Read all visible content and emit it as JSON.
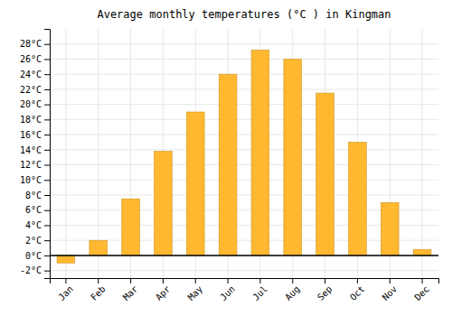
{
  "chart_data": {
    "type": "bar",
    "title": "Average monthly temperatures (°C ) in Kingman",
    "categories": [
      "Jan",
      "Feb",
      "Mar",
      "Apr",
      "May",
      "Jun",
      "Jul",
      "Aug",
      "Sep",
      "Oct",
      "Nov",
      "Dec"
    ],
    "values": [
      -1.0,
      2.0,
      7.5,
      13.8,
      19.0,
      24.0,
      27.2,
      26.0,
      21.5,
      15.0,
      7.0,
      0.8
    ],
    "color": "#FFB830",
    "ylim": [
      -3,
      30
    ],
    "yticks": [
      {
        "value": -2,
        "label": "-2°C"
      },
      {
        "value": 0,
        "label": "0°C"
      },
      {
        "value": 2,
        "label": "2°C"
      },
      {
        "value": 4,
        "label": "4°C"
      },
      {
        "value": 6,
        "label": "6°C"
      },
      {
        "value": 8,
        "label": "8°C"
      },
      {
        "value": 10,
        "label": "10°C"
      },
      {
        "value": 12,
        "label": "12°C"
      },
      {
        "value": 14,
        "label": "14°C"
      },
      {
        "value": 16,
        "label": "16°C"
      },
      {
        "value": 18,
        "label": "18°C"
      },
      {
        "value": 20,
        "label": "20°C"
      },
      {
        "value": 22,
        "label": "22°C"
      },
      {
        "value": 24,
        "label": "24°C"
      },
      {
        "value": 26,
        "label": "26°C"
      },
      {
        "value": 28,
        "label": "28°C"
      }
    ],
    "grid": true
  }
}
